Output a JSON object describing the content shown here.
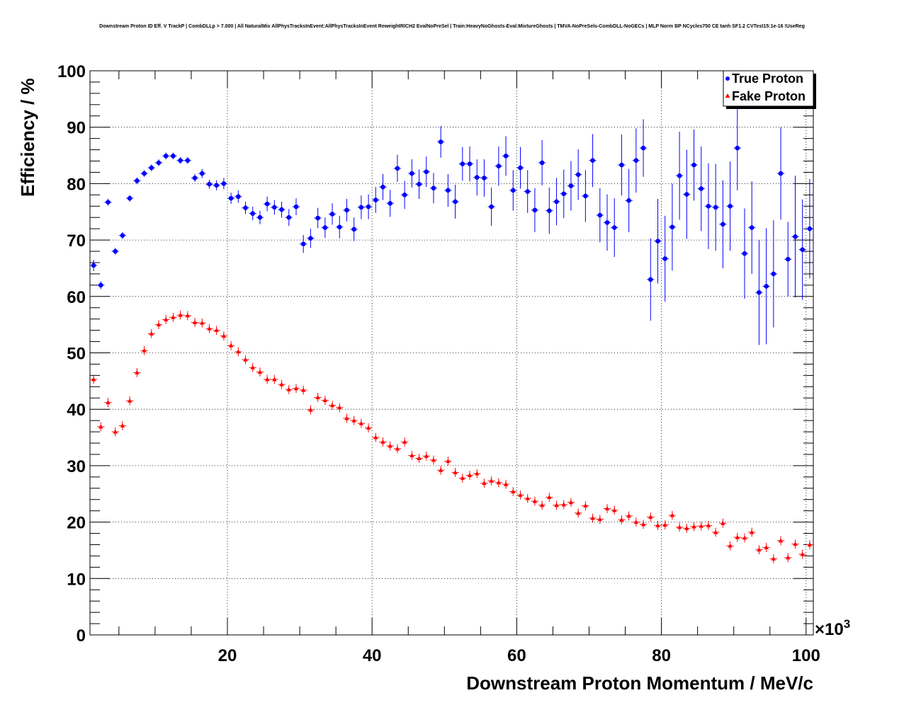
{
  "chart_data": {
    "type": "scatter",
    "title": "Downstream Proton ID Eff. V TrackP | CombDLLp > 7.000 | All NaturalMix AllPhysTracksInEvent:AllPhysTracksInEvent ReweightRICH2 EvalNoPreSel | Train:HeavyNoGhosts-Eval:MixtureGhosts | TMVA-NoPreSels-CombDLL-NoGECs | MLP Norm BP NCycles750 CE tanh SF1.2 CVTest15:1e-16 !UseReg",
    "xlabel": "Downstream Proton Momentum / MeV/c",
    "ylabel": "Efficiency / %",
    "x_multiplier_label": "×10",
    "x_multiplier_exp": "3",
    "xlim": [
      1,
      101
    ],
    "ylim": [
      0,
      100
    ],
    "x_tick_labels": [
      "20",
      "40",
      "60",
      "80",
      "100"
    ],
    "y_tick_labels": [
      "0",
      "10",
      "20",
      "30",
      "40",
      "50",
      "60",
      "70",
      "80",
      "90",
      "100"
    ],
    "grid": true,
    "legend_position": "top-right",
    "x_bin_width": 1,
    "series": [
      {
        "name": "True Proton",
        "color": "#0000ff",
        "marker": "circle",
        "x": [
          1.5,
          2.5,
          3.5,
          4.5,
          5.5,
          6.5,
          7.5,
          8.5,
          9.5,
          10.5,
          11.5,
          12.5,
          13.5,
          14.5,
          15.5,
          16.5,
          17.5,
          18.5,
          19.5,
          20.5,
          21.5,
          22.5,
          23.5,
          24.5,
          25.5,
          26.5,
          27.5,
          28.5,
          29.5,
          30.5,
          31.5,
          32.5,
          33.5,
          34.5,
          35.5,
          36.5,
          37.5,
          38.5,
          39.5,
          40.5,
          41.5,
          42.5,
          43.5,
          44.5,
          45.5,
          46.5,
          47.5,
          48.5,
          49.5,
          50.5,
          51.5,
          52.5,
          53.5,
          54.5,
          55.5,
          56.5,
          57.5,
          58.5,
          59.5,
          60.5,
          61.5,
          62.5,
          63.5,
          64.5,
          65.5,
          66.5,
          67.5,
          68.5,
          69.5,
          70.5,
          71.5,
          72.5,
          73.5,
          74.5,
          75.5,
          76.5,
          77.5,
          78.5,
          79.5,
          80.5,
          81.5,
          82.5,
          83.5,
          84.5,
          85.5,
          86.5,
          87.5,
          88.5,
          89.5,
          90.5,
          91.5,
          92.5,
          93.5,
          94.5,
          95.5,
          96.5,
          97.5,
          98.5,
          99.5,
          100.5
        ],
        "y": [
          65.5,
          62,
          76.7,
          68,
          70.8,
          77.4,
          80.5,
          81.8,
          82.8,
          83.7,
          84.9,
          84.9,
          84.1,
          84.1,
          81,
          81.8,
          79.9,
          79.7,
          80,
          77.4,
          77.7,
          75.7,
          74.7,
          74,
          76.4,
          75.8,
          75.4,
          74,
          75.9,
          69.3,
          70.3,
          73.9,
          72.2,
          74.6,
          72.3,
          75.3,
          71.9,
          75.8,
          75.9,
          77.1,
          79.4,
          76.5,
          82.7,
          78,
          81.8,
          79.9,
          82.1,
          79.2,
          87.4,
          78.8,
          76.8,
          83.5,
          83.5,
          81.1,
          81,
          75.9,
          83.1,
          84.9,
          78.8,
          82.8,
          78.6,
          75.3,
          83.7,
          75.2,
          76.8,
          78.2,
          79.6,
          81.6,
          77.8,
          84.1,
          74.4,
          73.1,
          72.2,
          83.3,
          77,
          84.1,
          86.3,
          63,
          69.8,
          66.7,
          72.3,
          81.4,
          78.1,
          83.3,
          79.1,
          76,
          75.8,
          72.8,
          76,
          86.3,
          67.6,
          72.2,
          60.7,
          61.8,
          64,
          81.8,
          66.6,
          70.6,
          68.3,
          72
        ],
        "y_err": [
          1,
          0.7,
          0.6,
          0.6,
          0.6,
          0.6,
          0.6,
          0.6,
          0.6,
          0.6,
          0.6,
          0.6,
          0.6,
          0.6,
          0.7,
          0.8,
          0.8,
          0.9,
          1,
          1,
          1.1,
          1.1,
          1.2,
          1.2,
          1.3,
          1.3,
          1.4,
          1.5,
          1.5,
          1.6,
          1.7,
          1.8,
          1.8,
          1.9,
          2,
          2,
          2.1,
          2.1,
          2.2,
          2.3,
          2.3,
          2.4,
          2.4,
          2.5,
          2.5,
          2.6,
          2.7,
          2.7,
          2.8,
          2.9,
          3,
          3,
          3.1,
          3.2,
          3.3,
          3.4,
          3.5,
          3.5,
          3.6,
          3.7,
          3.8,
          3.9,
          4,
          4.1,
          4.2,
          4.3,
          4.4,
          4.5,
          4.6,
          4.7,
          4.8,
          5,
          5.2,
          5.4,
          5.6,
          5.7,
          5.1,
          7.3,
          7.5,
          7.6,
          7.7,
          7.8,
          7.9,
          6.3,
          7.5,
          7.6,
          7.7,
          7.8,
          7.9,
          7.5,
          8,
          8.2,
          9.3,
          10.3,
          9.5,
          8.2,
          6.6,
          10.8,
          8.9,
          8.8
        ]
      },
      {
        "name": "Fake Proton",
        "color": "#ff0000",
        "marker": "triangle",
        "x": [
          1.5,
          2.5,
          3.5,
          4.5,
          5.5,
          6.5,
          7.5,
          8.5,
          9.5,
          10.5,
          11.5,
          12.5,
          13.5,
          14.5,
          15.5,
          16.5,
          17.5,
          18.5,
          19.5,
          20.5,
          21.5,
          22.5,
          23.5,
          24.5,
          25.5,
          26.5,
          27.5,
          28.5,
          29.5,
          30.5,
          31.5,
          32.5,
          33.5,
          34.5,
          35.5,
          36.5,
          37.5,
          38.5,
          39.5,
          40.5,
          41.5,
          42.5,
          43.5,
          44.5,
          45.5,
          46.5,
          47.5,
          48.5,
          49.5,
          50.5,
          51.5,
          52.5,
          53.5,
          54.5,
          55.5,
          56.5,
          57.5,
          58.5,
          59.5,
          60.5,
          61.5,
          62.5,
          63.5,
          64.5,
          65.5,
          66.5,
          67.5,
          68.5,
          69.5,
          70.5,
          71.5,
          72.5,
          73.5,
          74.5,
          75.5,
          76.5,
          77.5,
          78.5,
          79.5,
          80.5,
          81.5,
          82.5,
          83.5,
          84.5,
          85.5,
          86.5,
          87.5,
          88.5,
          89.5,
          90.5,
          91.5,
          92.5,
          93.5,
          94.5,
          95.5,
          96.5,
          97.5,
          98.5,
          99.5,
          100.5
        ],
        "y": [
          45.3,
          36.9,
          41.2,
          36,
          37.1,
          41.5,
          46.5,
          50.4,
          53.4,
          55,
          55.9,
          56.3,
          56.7,
          56.6,
          55.4,
          55.3,
          54.3,
          54,
          53,
          51.3,
          50.2,
          48.8,
          47.4,
          46.6,
          45.3,
          45.3,
          44.4,
          43.5,
          43.7,
          43.4,
          39.9,
          42.1,
          41.6,
          40.7,
          40.3,
          38.4,
          38,
          37.5,
          36.7,
          35,
          34.2,
          33.5,
          33,
          34.2,
          31.8,
          31.3,
          31.7,
          31,
          29.2,
          30.8,
          28.8,
          27.8,
          28.3,
          28.6,
          26.9,
          27.3,
          27,
          26.7,
          25.4,
          24.8,
          24.2,
          23.7,
          23,
          24.4,
          23,
          23.1,
          23.5,
          21.6,
          22.9,
          20.7,
          20.5,
          22.4,
          22.1,
          20.4,
          21.1,
          20,
          19.6,
          20.9,
          19.4,
          19.5,
          21.2,
          19.1,
          18.9,
          19.2,
          19.3,
          19.4,
          18.2,
          19.8,
          15.8,
          17.3,
          17.2,
          18.2,
          15.1,
          15.5,
          13.5,
          16.7,
          13.7,
          16.1,
          14.3,
          16
        ]
      }
    ]
  }
}
